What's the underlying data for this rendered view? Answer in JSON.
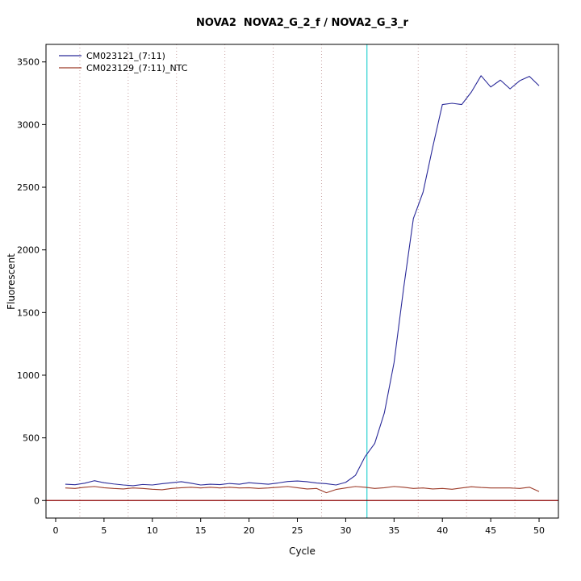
{
  "chart_data": {
    "type": "line",
    "title": "NOVA2  NOVA2_G_2_f / NOVA2_G_3_r",
    "xlabel": "Cycle",
    "ylabel": "Fluorescent",
    "xlim": [
      -1,
      52
    ],
    "ylim": [
      -140,
      3640
    ],
    "xticks": [
      0,
      5,
      10,
      15,
      20,
      25,
      30,
      35,
      40,
      45,
      50
    ],
    "yticks": [
      0,
      500,
      1000,
      1500,
      2000,
      2500,
      3000,
      3500
    ],
    "grid": "dotted-vertical",
    "legend_position": "top-left",
    "x": [
      1,
      2,
      3,
      4,
      5,
      6,
      7,
      8,
      9,
      10,
      11,
      12,
      13,
      14,
      15,
      16,
      17,
      18,
      19,
      20,
      21,
      22,
      23,
      24,
      25,
      26,
      27,
      28,
      29,
      30,
      31,
      32,
      33,
      34,
      35,
      36,
      37,
      38,
      39,
      40,
      41,
      42,
      43,
      44,
      45,
      46,
      47,
      48,
      49,
      50
    ],
    "series": [
      {
        "name": "CM023121_(7:11)",
        "color": "#2a2a99",
        "values": [
          130,
          126,
          138,
          158,
          142,
          132,
          124,
          118,
          128,
          124,
          134,
          142,
          150,
          138,
          124,
          130,
          127,
          136,
          130,
          142,
          136,
          130,
          140,
          152,
          156,
          150,
          140,
          134,
          124,
          145,
          200,
          350,
          455,
          700,
          1100,
          1700,
          2250,
          2460,
          2820,
          3160,
          3170,
          3160,
          3260,
          3390,
          3300,
          3355,
          3285,
          3350,
          3385,
          3310
        ]
      },
      {
        "name": "CM023129_(7:11)_NTC",
        "color": "#9c3a28",
        "values": [
          100,
          96,
          106,
          112,
          102,
          96,
          92,
          100,
          96,
          90,
          86,
          96,
          102,
          106,
          100,
          106,
          100,
          106,
          100,
          102,
          96,
          100,
          106,
          112,
          102,
          92,
          96,
          62,
          88,
          100,
          112,
          106,
          96,
          102,
          112,
          106,
          96,
          100,
          92,
          96,
          90,
          100,
          110,
          104,
          100,
          100,
          100,
          96,
          106,
          72
        ]
      }
    ],
    "vlines": [
      {
        "x": 2.5,
        "color": "#c9a4a4",
        "dash": "dotted"
      },
      {
        "x": 7.5,
        "color": "#c9a4a4",
        "dash": "dotted"
      },
      {
        "x": 12.5,
        "color": "#c9a4a4",
        "dash": "dotted"
      },
      {
        "x": 17.5,
        "color": "#c9a4a4",
        "dash": "dotted"
      },
      {
        "x": 22.5,
        "color": "#c9a4a4",
        "dash": "dotted"
      },
      {
        "x": 27.5,
        "color": "#c9a4a4",
        "dash": "dotted"
      },
      {
        "x": 37.5,
        "color": "#c9a4a4",
        "dash": "dotted"
      },
      {
        "x": 42.5,
        "color": "#c9a4a4",
        "dash": "dotted"
      },
      {
        "x": 47.5,
        "color": "#c9a4a4",
        "dash": "dotted"
      },
      {
        "x": 32.2,
        "color": "#00c8c8",
        "dash": "solid"
      }
    ],
    "hlines": [
      {
        "y": 0,
        "color": "#8b0000",
        "dash": "solid"
      }
    ]
  }
}
